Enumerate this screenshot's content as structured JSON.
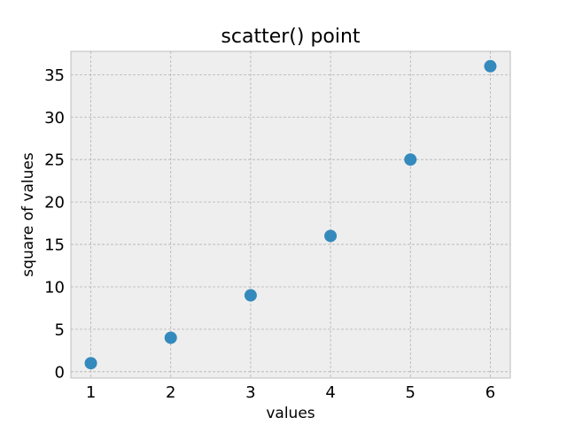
{
  "chart_data": {
    "type": "scatter",
    "title": "scatter() point",
    "xlabel": "values",
    "ylabel": "square of values",
    "x": [
      1,
      2,
      3,
      4,
      5,
      6
    ],
    "y": [
      1,
      4,
      9,
      16,
      25,
      36
    ],
    "xlim": [
      0.75,
      6.25
    ],
    "ylim": [
      -0.75,
      37.75
    ],
    "xticks": [
      1,
      2,
      3,
      4,
      5,
      6
    ],
    "yticks": [
      0,
      5,
      10,
      15,
      20,
      25,
      30,
      35
    ],
    "grid": true,
    "colors": {
      "marker": "#348ABD",
      "plot_background": "#EEEEEE",
      "axes_edge": "#BCBCBC"
    }
  }
}
